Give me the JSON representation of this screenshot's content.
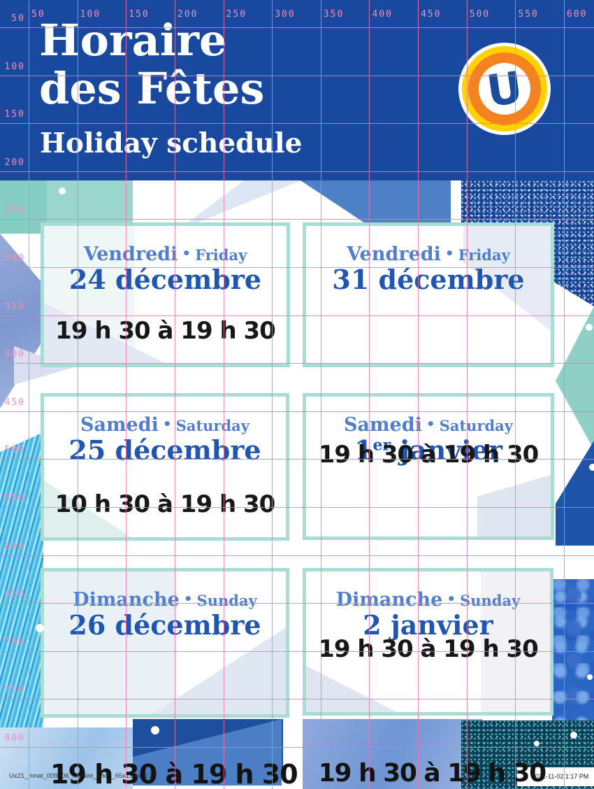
{
  "header": {
    "title_line1": "Horaire",
    "title_line2": "des Fêtes",
    "subtitle": "Holiday schedule"
  },
  "logo": {
    "letter": "U"
  },
  "cards": [
    {
      "day_fr": "Vendredi",
      "sep": "•",
      "day_en": "Friday",
      "date_main": "24 décembre",
      "date_sup": "",
      "date_tail": "",
      "time": "19 h 30 à 19 h 30"
    },
    {
      "day_fr": "Vendredi",
      "sep": "•",
      "day_en": "Friday",
      "date_main": "31 décembre",
      "date_sup": "",
      "date_tail": "",
      "time": ""
    },
    {
      "day_fr": "Samedi",
      "sep": "•",
      "day_en": "Saturday",
      "date_main": "25 décembre",
      "date_sup": "",
      "date_tail": "",
      "time": "10 h 30 à 19 h 30"
    },
    {
      "day_fr": "Samedi",
      "sep": "•",
      "day_en": "Saturday",
      "date_main": "1",
      "date_sup": "er",
      "date_tail": " janvier",
      "time": "19 h 30 à 19 h 30"
    },
    {
      "day_fr": "Dimanche",
      "sep": "•",
      "day_en": "Sunday",
      "date_main": "26 décembre",
      "date_sup": "",
      "date_tail": "",
      "time": ""
    },
    {
      "day_fr": "Dimanche",
      "sep": "•",
      "day_en": "Sunday",
      "date_main": "2 janvier",
      "date_sup": "",
      "date_tail": "",
      "time": "19 h 30 à 19 h 30"
    }
  ],
  "bottom_times": {
    "left": "19 h 30 à 19 h 30",
    "right": "19 h 30 à 19 h 30"
  },
  "footer": {
    "slug": "Ux21_mnat_009_06_horaire_fetes_65x11.indd  2",
    "timestamp": "2021-11-02  1:17 PM"
  },
  "ruler": {
    "top_labels": [
      "50",
      "100",
      "150",
      "200",
      "250",
      "300",
      "350",
      "400",
      "450",
      "500",
      "550",
      "600"
    ],
    "left_labels": [
      "50",
      "100",
      "150",
      "200",
      "250",
      "300",
      "350",
      "400",
      "450",
      "500",
      "550",
      "600",
      "650",
      "700",
      "750",
      "800"
    ]
  },
  "colors": {
    "header_blue": "#18499e",
    "grid_pink": "#f076ac",
    "card_border_mint": "#a9dcd5",
    "day_blue": "#4f7fcd",
    "date_blue": "#1f57b0",
    "time_black": "#171717",
    "logo_orange": "#f58220",
    "logo_yellow": "#ffd200"
  }
}
